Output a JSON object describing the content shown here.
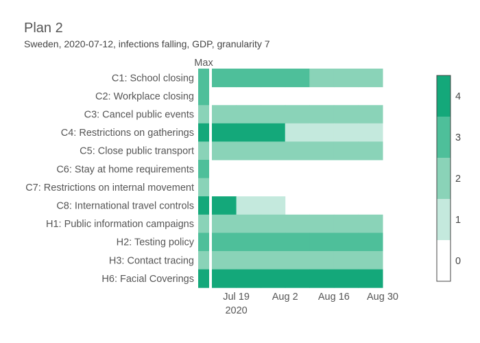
{
  "title": "Plan 2",
  "subtitle": "Sweden, 2020-07-12, infections falling, GDP, granularity 7",
  "chart_data": {
    "type": "heatmap",
    "title": "Plan 2",
    "subtitle": "Sweden, 2020-07-12, infections falling, GDP, granularity 7",
    "max_column_label": "Max",
    "x_tick_labels": [
      "Jul 19",
      "Aug 2",
      "Aug 16",
      "Aug 30"
    ],
    "x_year_label": "2020",
    "x_range": [
      "2020-07-12",
      "2020-08-30"
    ],
    "week_starts": [
      "2020-07-12",
      "2020-07-19",
      "2020-07-26",
      "2020-08-02",
      "2020-08-09",
      "2020-08-16",
      "2020-08-23"
    ],
    "colorscale": [
      "#ffffff",
      "#c4e9dd",
      "#8ad3b8",
      "#4ebf9a",
      "#14a87a"
    ],
    "colorbar_ticks": [
      0,
      1,
      2,
      3,
      4
    ],
    "rows": [
      {
        "label": "C1: School closing",
        "max": 3,
        "values": [
          3,
          3,
          3,
          3,
          2,
          2,
          2
        ]
      },
      {
        "label": "C2: Workplace closing",
        "max": 3,
        "values": [
          0,
          0,
          0,
          0,
          0,
          0,
          0
        ]
      },
      {
        "label": "C3: Cancel public events",
        "max": 2,
        "values": [
          2,
          2,
          2,
          2,
          2,
          2,
          2
        ]
      },
      {
        "label": "C4: Restrictions on gatherings",
        "max": 4,
        "values": [
          4,
          4,
          4,
          1,
          1,
          1,
          1
        ]
      },
      {
        "label": "C5: Close public transport",
        "max": 2,
        "values": [
          2,
          2,
          2,
          2,
          2,
          2,
          2
        ]
      },
      {
        "label": "C6: Stay at home requirements",
        "max": 3,
        "values": [
          0,
          0,
          0,
          0,
          0,
          0,
          0
        ]
      },
      {
        "label": "C7: Restrictions on internal movement",
        "max": 2,
        "values": [
          0,
          0,
          0,
          0,
          0,
          0,
          0
        ]
      },
      {
        "label": "C8: International travel controls",
        "max": 4,
        "values": [
          4,
          1,
          1,
          0,
          0,
          0,
          0
        ]
      },
      {
        "label": "H1: Public information campaigns",
        "max": 2,
        "values": [
          2,
          2,
          2,
          2,
          2,
          2,
          2
        ]
      },
      {
        "label": "H2: Testing policy",
        "max": 3,
        "values": [
          3,
          3,
          3,
          3,
          3,
          3,
          3
        ]
      },
      {
        "label": "H3: Contact tracing",
        "max": 2,
        "values": [
          2,
          2,
          2,
          2,
          2,
          2,
          2
        ]
      },
      {
        "label": "H6: Facial Coverings",
        "max": 4,
        "values": [
          4,
          4,
          4,
          4,
          4,
          4,
          4
        ]
      }
    ]
  }
}
